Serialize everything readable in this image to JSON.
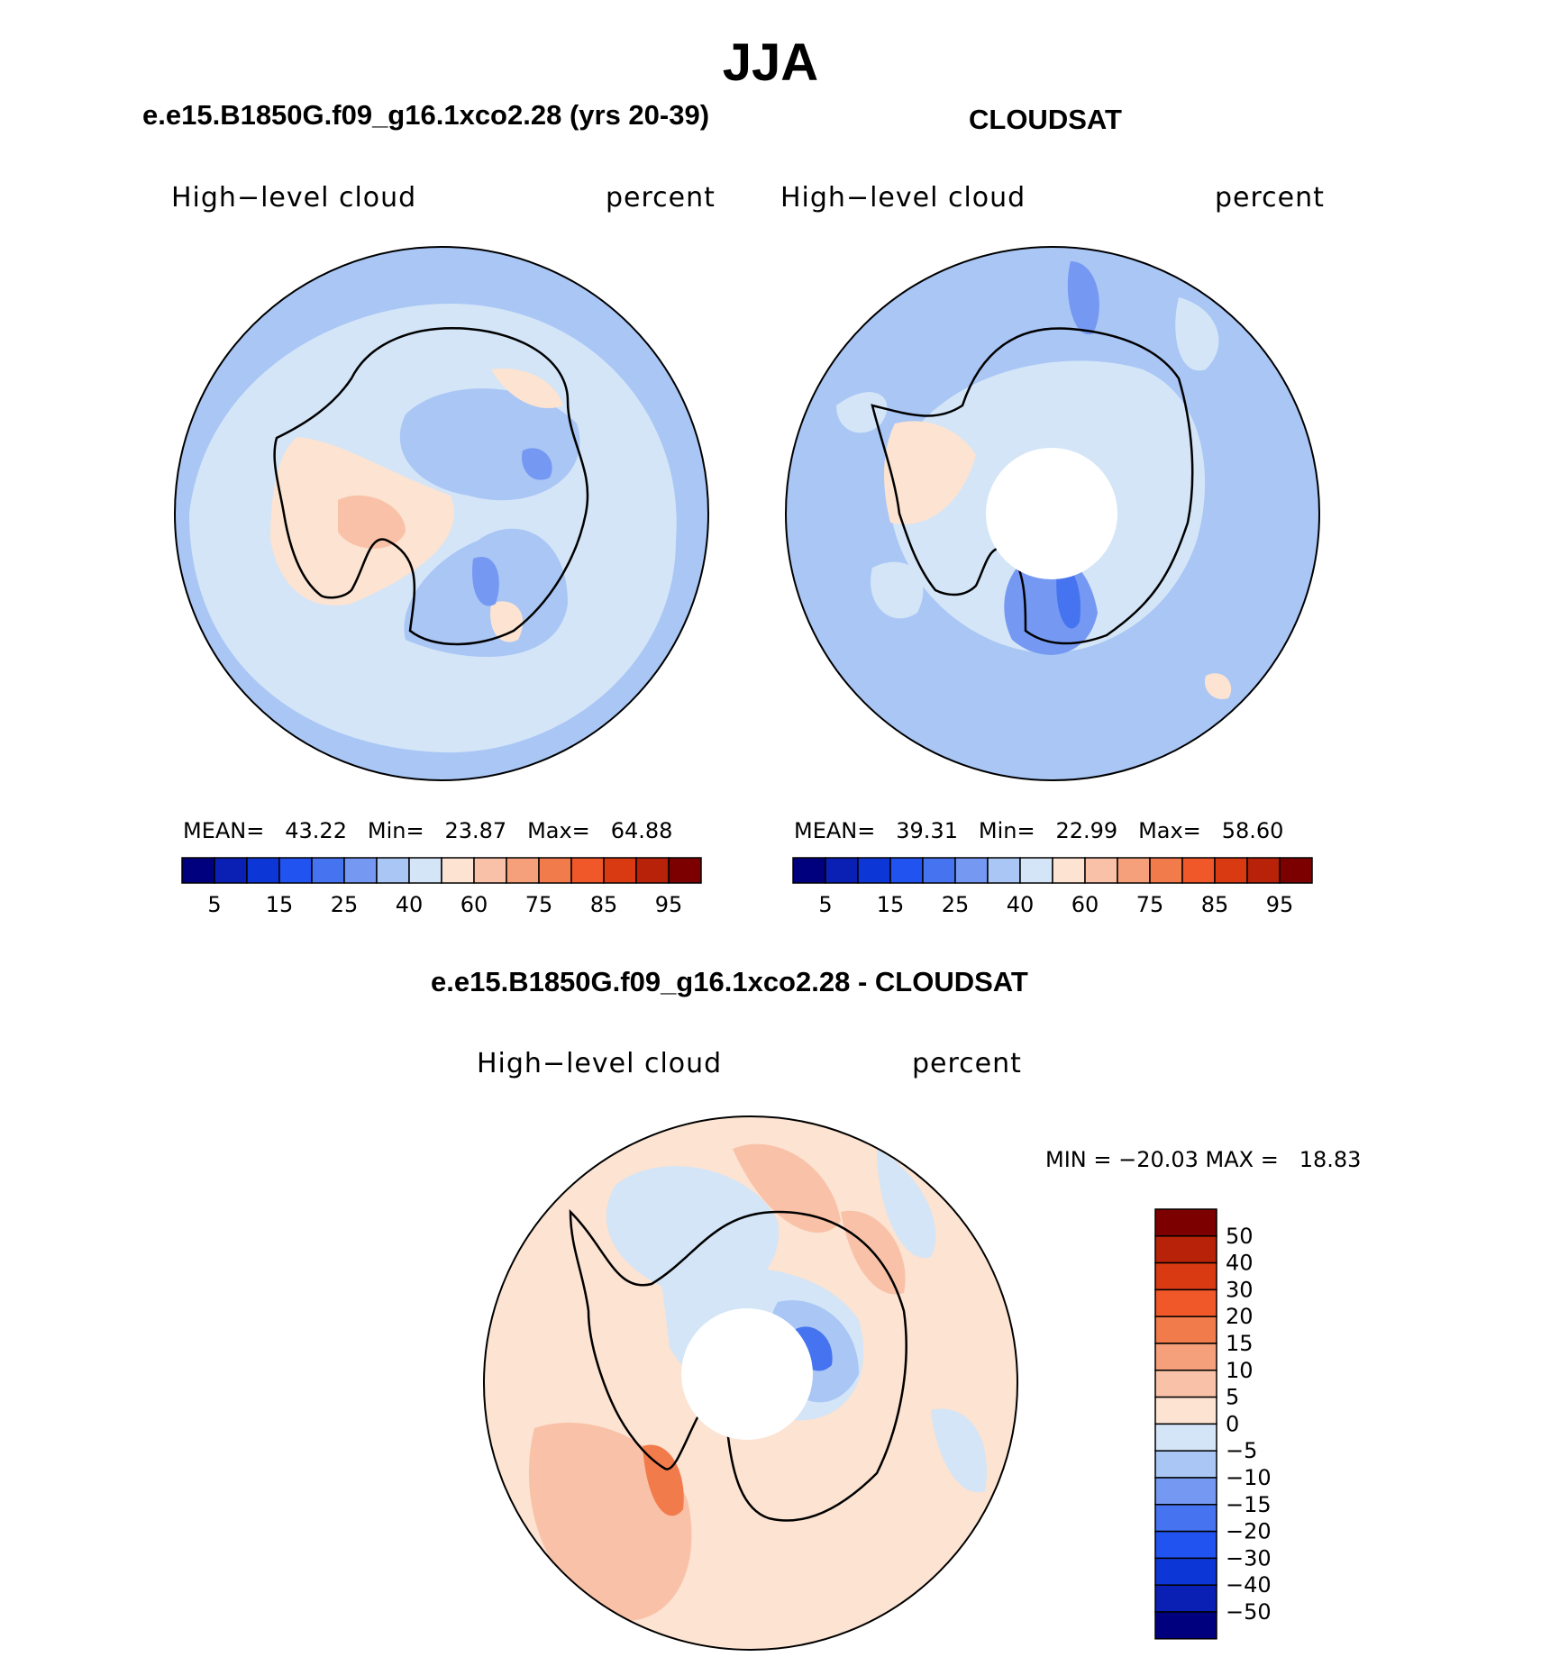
{
  "season": "JJA",
  "palette": [
    "#00007f",
    "#0a1fb3",
    "#0d36d6",
    "#2153f0",
    "#4674f0",
    "#7599f2",
    "#a9c6f5",
    "#d3e5f7",
    "#fce3d2",
    "#f9c2a8",
    "#f5a07b",
    "#f27b4c",
    "#f0582a",
    "#d93a12",
    "#b82208",
    "#7d0000"
  ],
  "panels": {
    "model": {
      "title": "e.e15.B1850G.f09_g16.1xco2.28 (yrs 20-39)",
      "variable": "High−level cloud",
      "units": "percent",
      "stats": {
        "mean_label": "MEAN=",
        "mean": "43.22",
        "min_label": "Min=",
        "min": "23.87",
        "max_label": "Max=",
        "max": "64.88"
      }
    },
    "obs": {
      "title": "CLOUDSAT",
      "variable": "High−level cloud",
      "units": "percent",
      "stats": {
        "mean_label": "MEAN=",
        "mean": "39.31",
        "min_label": "Min=",
        "min": "22.99",
        "max_label": "Max=",
        "max": "58.60"
      }
    },
    "diff": {
      "title": "e.e15.B1850G.f09_g16.1xco2.28 - CLOUDSAT",
      "variable": "High−level cloud",
      "units": "percent",
      "minmax": "MIN = −20.03 MAX =   18.83"
    }
  },
  "colorbar_labels": [
    "5",
    "15",
    "25",
    "40",
    "60",
    "75",
    "85",
    "95"
  ],
  "diff_colorbar_labels": [
    "50",
    "40",
    "30",
    "20",
    "15",
    "10",
    "5",
    "0",
    "−5",
    "−10",
    "−15",
    "−20",
    "−30",
    "−40",
    "−50"
  ]
}
